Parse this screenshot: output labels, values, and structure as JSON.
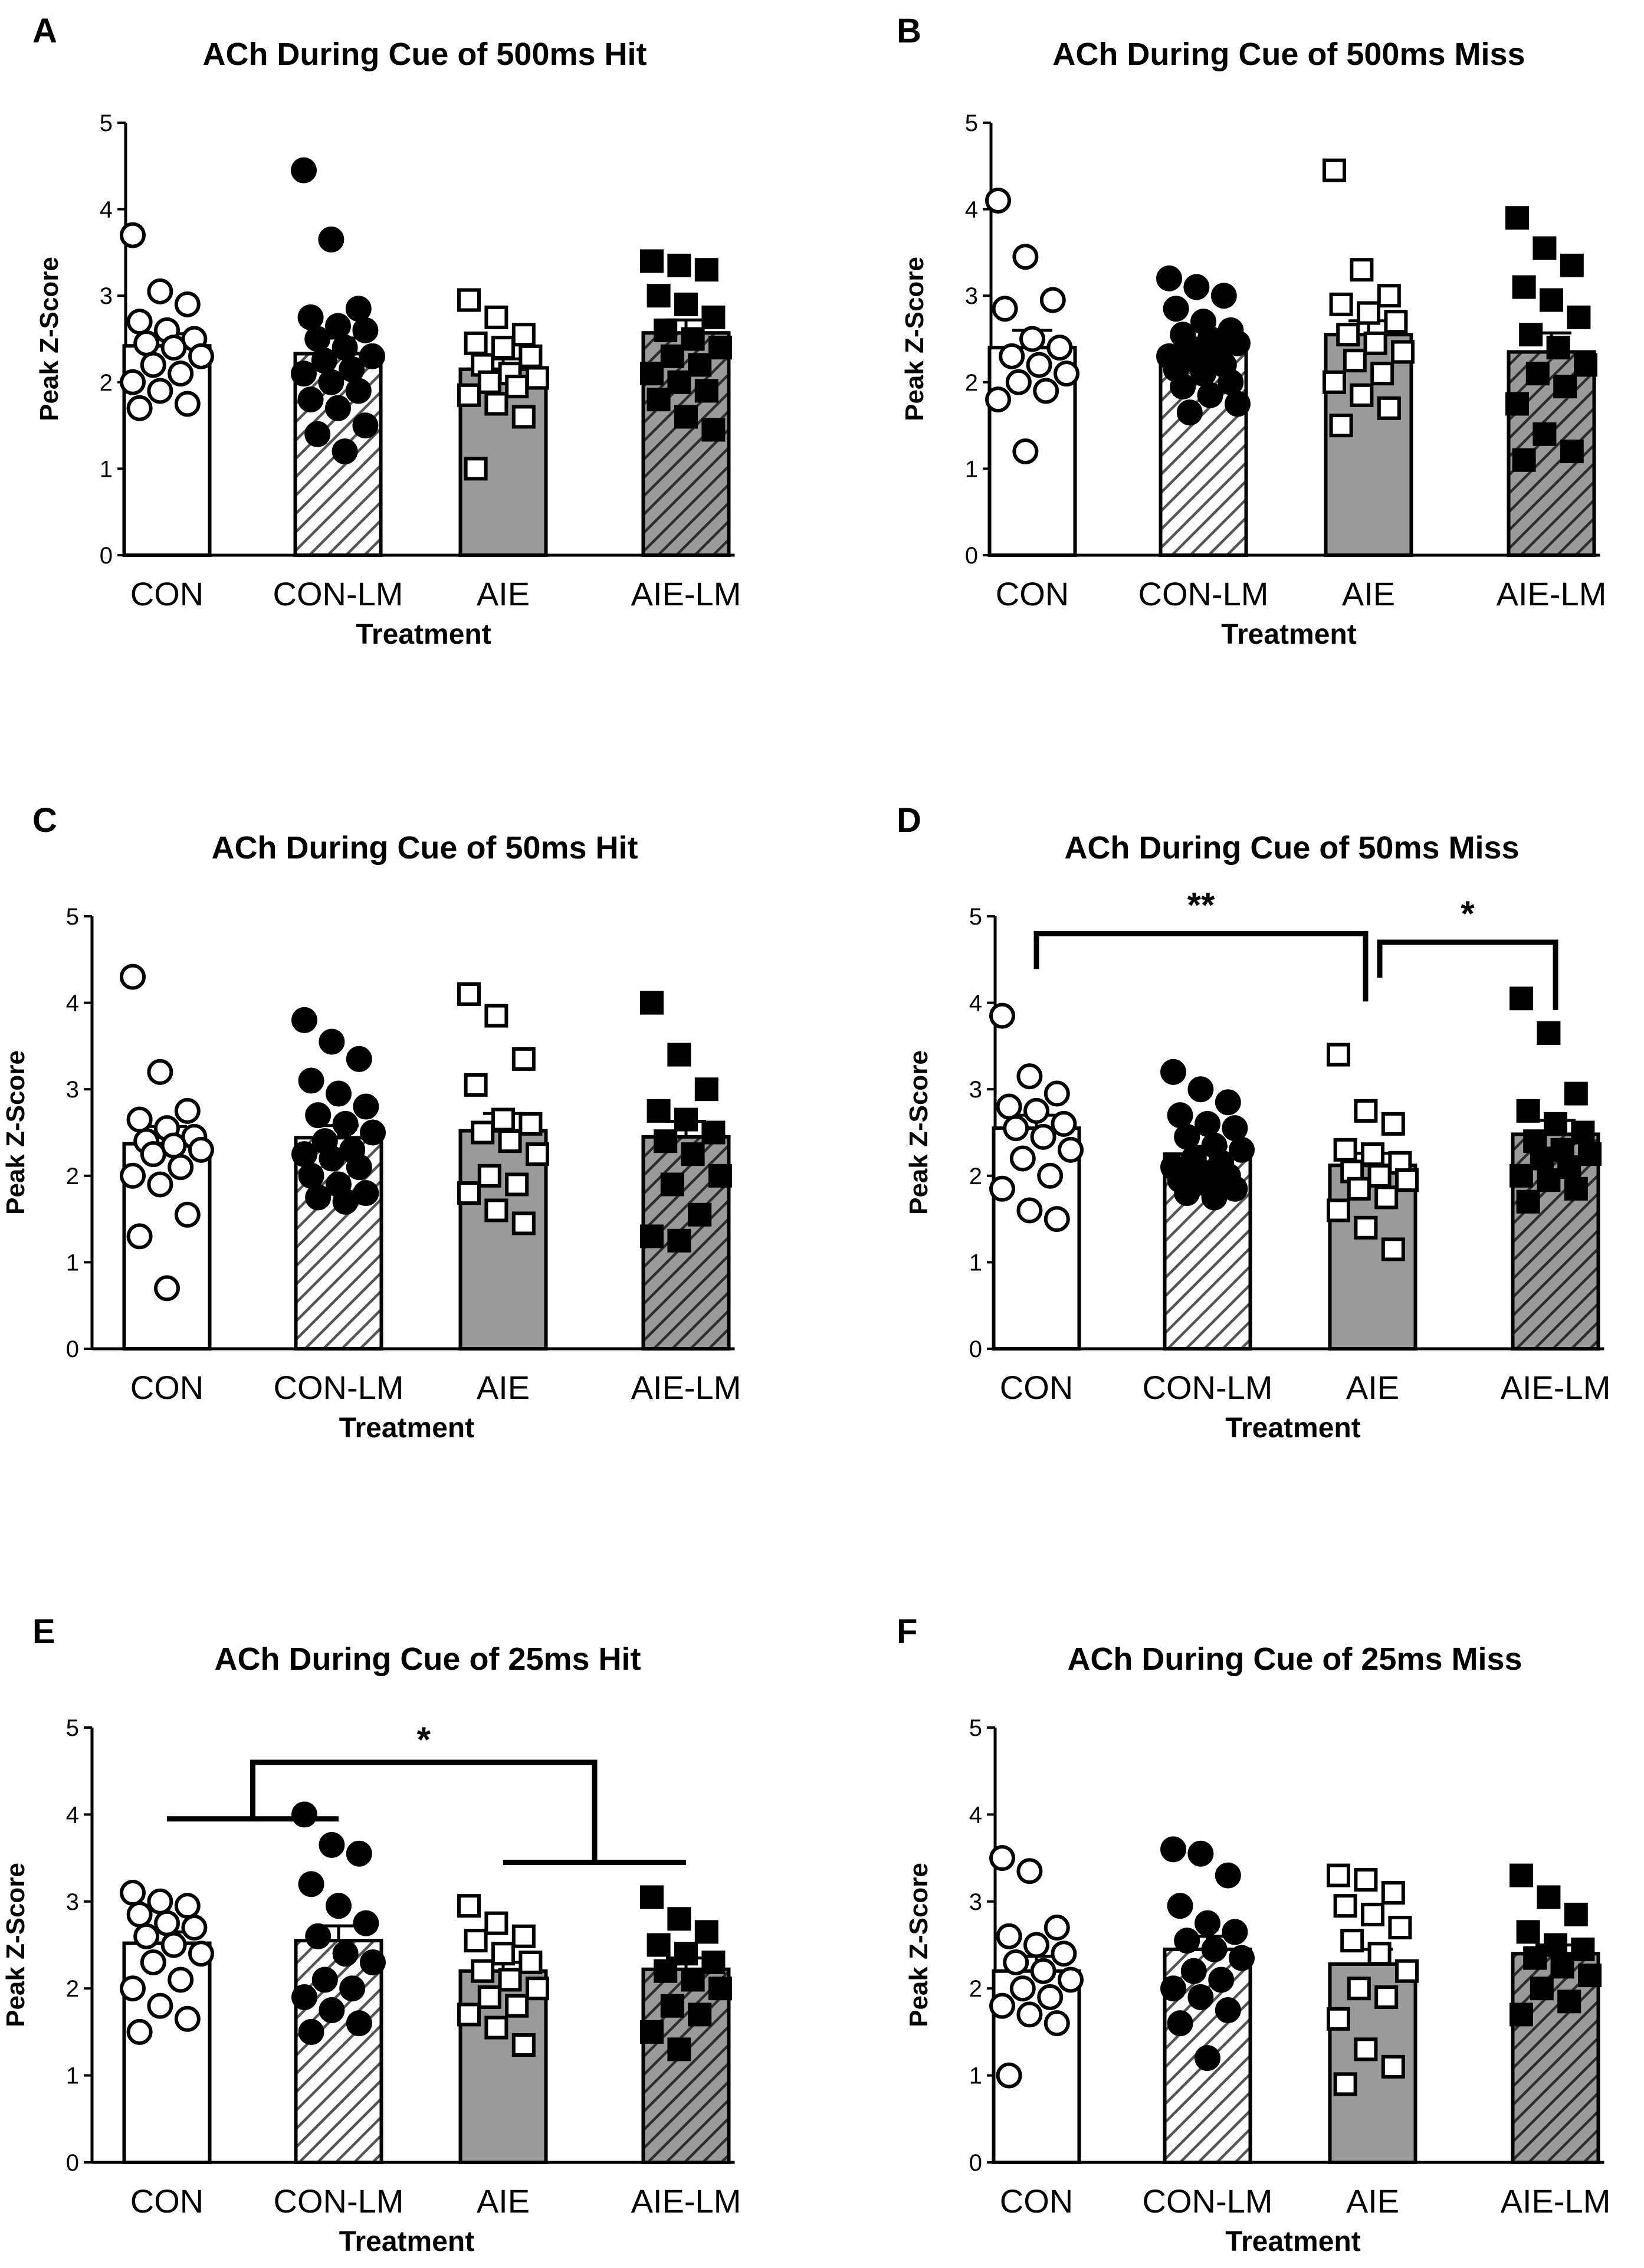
{
  "figure": {
    "y_axis_label": "Peak Z-Score",
    "x_axis_label": "Treatment"
  },
  "chart_data": [
    {
      "panel": "A",
      "type": "bar",
      "title": "ACh During Cue of 500ms Hit",
      "xlabel": "Treatment",
      "ylabel": "Peak Z-Score",
      "ylim": [
        0,
        5
      ],
      "yticks": [
        "0",
        "1",
        "2",
        "3",
        "4",
        "5"
      ],
      "categories": [
        "CON",
        "CON-LM",
        "AIE",
        "AIE-LM"
      ],
      "values": [
        2.42,
        2.33,
        2.15,
        2.57
      ],
      "errors": [
        0.14,
        0.18,
        0.12,
        0.15
      ],
      "points": [
        [
          3.7,
          3.05,
          2.9,
          2.7,
          2.6,
          2.5,
          2.45,
          2.4,
          2.3,
          2.2,
          2.1,
          2.0,
          1.9,
          1.75,
          1.7
        ],
        [
          4.45,
          3.65,
          2.85,
          2.75,
          2.65,
          2.6,
          2.5,
          2.4,
          2.3,
          2.25,
          2.15,
          2.1,
          2.0,
          1.9,
          1.8,
          1.7,
          1.5,
          1.4,
          1.2
        ],
        [
          2.95,
          2.75,
          2.55,
          2.45,
          2.4,
          2.3,
          2.2,
          2.1,
          2.05,
          2.0,
          1.95,
          1.85,
          1.75,
          1.6,
          1.0
        ],
        [
          3.4,
          3.35,
          3.3,
          3.0,
          2.9,
          2.75,
          2.6,
          2.5,
          2.4,
          2.3,
          2.2,
          2.1,
          2.0,
          1.9,
          1.8,
          1.6,
          1.45
        ]
      ],
      "significance": []
    },
    {
      "panel": "B",
      "type": "bar",
      "title": "ACh During Cue of 500ms Miss",
      "xlabel": "Treatment",
      "ylabel": "Peak Z-Score",
      "ylim": [
        0,
        5
      ],
      "yticks": [
        "0",
        "1",
        "2",
        "3",
        "4",
        "5"
      ],
      "categories": [
        "CON",
        "CON-LM",
        "AIE",
        "AIE-LM"
      ],
      "values": [
        2.4,
        2.38,
        2.55,
        2.35
      ],
      "errors": [
        0.2,
        0.09,
        0.16,
        0.22
      ],
      "points": [
        [
          4.1,
          3.45,
          2.95,
          2.85,
          2.5,
          2.4,
          2.3,
          2.2,
          2.1,
          2.0,
          1.9,
          1.8,
          1.2
        ],
        [
          3.2,
          3.1,
          3.0,
          2.85,
          2.7,
          2.6,
          2.55,
          2.5,
          2.45,
          2.4,
          2.35,
          2.3,
          2.25,
          2.2,
          2.15,
          2.1,
          2.0,
          1.95,
          1.85,
          1.75,
          1.65
        ],
        [
          4.45,
          3.3,
          3.0,
          2.9,
          2.8,
          2.7,
          2.55,
          2.45,
          2.35,
          2.25,
          2.1,
          2.0,
          1.85,
          1.7,
          1.5
        ],
        [
          3.9,
          3.55,
          3.35,
          3.1,
          2.95,
          2.75,
          2.55,
          2.4,
          2.2,
          2.1,
          1.95,
          1.75,
          1.4,
          1.2,
          1.1
        ]
      ],
      "significance": []
    },
    {
      "panel": "C",
      "type": "bar",
      "title": "ACh During Cue of 50ms Hit",
      "xlabel": "Treatment",
      "ylabel": "Peak Z-Score",
      "ylim": [
        0,
        5
      ],
      "yticks": [
        "0",
        "1",
        "2",
        "3",
        "4",
        "5"
      ],
      "categories": [
        "CON",
        "CON-LM",
        "AIE",
        "AIE-LM"
      ],
      "values": [
        2.37,
        2.44,
        2.52,
        2.45
      ],
      "errors": [
        0.2,
        0.14,
        0.2,
        0.18
      ],
      "points": [
        [
          4.3,
          3.2,
          2.75,
          2.65,
          2.55,
          2.45,
          2.4,
          2.35,
          2.3,
          2.25,
          2.1,
          2.0,
          1.9,
          1.55,
          1.3,
          0.7
        ],
        [
          3.8,
          3.55,
          3.35,
          3.1,
          2.95,
          2.8,
          2.7,
          2.6,
          2.5,
          2.4,
          2.3,
          2.25,
          2.2,
          2.1,
          2.0,
          1.9,
          1.8,
          1.75,
          1.7
        ],
        [
          4.1,
          3.85,
          3.35,
          3.05,
          2.65,
          2.6,
          2.5,
          2.4,
          2.25,
          2.0,
          1.9,
          1.8,
          1.6,
          1.45
        ],
        [
          4.0,
          3.4,
          3.0,
          2.75,
          2.65,
          2.5,
          2.4,
          2.25,
          2.0,
          1.9,
          1.55,
          1.3,
          1.25
        ]
      ],
      "significance": []
    },
    {
      "panel": "D",
      "type": "bar",
      "title": "ACh During Cue of 50ms Miss",
      "xlabel": "Treatment",
      "ylabel": "Peak Z-Score",
      "ylim": [
        0,
        5
      ],
      "yticks": [
        "0",
        "1",
        "2",
        "3",
        "4",
        "5"
      ],
      "categories": [
        "CON",
        "CON-LM",
        "AIE",
        "AIE-LM"
      ],
      "values": [
        2.55,
        2.25,
        2.12,
        2.48
      ],
      "errors": [
        0.15,
        0.09,
        0.14,
        0.16
      ],
      "points": [
        [
          3.85,
          3.15,
          2.95,
          2.8,
          2.75,
          2.6,
          2.55,
          2.45,
          2.3,
          2.2,
          2.0,
          1.85,
          1.6,
          1.5
        ],
        [
          3.2,
          3.0,
          2.85,
          2.7,
          2.6,
          2.55,
          2.45,
          2.35,
          2.3,
          2.2,
          2.15,
          2.1,
          2.05,
          2.0,
          1.95,
          1.9,
          1.85,
          1.8,
          1.75
        ],
        [
          3.4,
          2.75,
          2.6,
          2.3,
          2.25,
          2.15,
          2.05,
          2.0,
          1.95,
          1.85,
          1.75,
          1.6,
          1.4,
          1.15
        ],
        [
          4.05,
          3.65,
          2.95,
          2.75,
          2.6,
          2.5,
          2.4,
          2.3,
          2.25,
          2.2,
          2.1,
          2.0,
          1.95,
          1.85,
          1.7
        ]
      ],
      "significance": [
        {
          "from": 0,
          "to": 2,
          "level": 4.8,
          "label": "**"
        },
        {
          "from": 2,
          "to": 3,
          "level": 4.7,
          "label": "*"
        }
      ]
    },
    {
      "panel": "E",
      "type": "bar",
      "title": "ACh During Cue of 25ms Hit",
      "xlabel": "Treatment",
      "ylabel": "Peak Z-Score",
      "ylim": [
        0,
        5
      ],
      "yticks": [
        "0",
        "1",
        "2",
        "3",
        "4",
        "5"
      ],
      "categories": [
        "CON",
        "CON-LM",
        "AIE",
        "AIE-LM"
      ],
      "values": [
        2.52,
        2.55,
        2.2,
        2.22
      ],
      "errors": [
        0.13,
        0.17,
        0.1,
        0.13
      ],
      "points": [
        [
          3.1,
          3.0,
          2.95,
          2.85,
          2.75,
          2.7,
          2.6,
          2.5,
          2.4,
          2.3,
          2.1,
          2.0,
          1.8,
          1.65,
          1.5
        ],
        [
          4.0,
          3.65,
          3.55,
          3.2,
          2.95,
          2.75,
          2.6,
          2.4,
          2.3,
          2.1,
          2.0,
          1.9,
          1.75,
          1.6,
          1.5
        ],
        [
          2.95,
          2.75,
          2.6,
          2.55,
          2.4,
          2.3,
          2.2,
          2.1,
          2.0,
          1.9,
          1.8,
          1.7,
          1.55,
          1.35
        ],
        [
          3.05,
          2.8,
          2.65,
          2.5,
          2.4,
          2.3,
          2.2,
          2.1,
          2.0,
          1.8,
          1.7,
          1.5,
          1.3
        ]
      ],
      "significance": [
        {
          "from": 0,
          "to": 1,
          "to_group": [
            2,
            3
          ],
          "label": "*",
          "level": 4.6,
          "group_level_a": 3.95,
          "group_level_b": 3.45
        }
      ]
    },
    {
      "panel": "F",
      "type": "bar",
      "title": "ACh During Cue of 25ms Miss",
      "xlabel": "Treatment",
      "ylabel": "Peak Z-Score",
      "ylim": [
        0,
        5
      ],
      "yticks": [
        "0",
        "1",
        "2",
        "3",
        "4",
        "5"
      ],
      "categories": [
        "CON",
        "CON-LM",
        "AIE",
        "AIE-LM"
      ],
      "values": [
        2.2,
        2.45,
        2.28,
        2.4
      ],
      "errors": [
        0.17,
        0.15,
        0.17,
        0.1
      ],
      "points": [
        [
          3.5,
          3.35,
          2.7,
          2.6,
          2.5,
          2.4,
          2.3,
          2.2,
          2.1,
          2.0,
          1.9,
          1.8,
          1.7,
          1.6,
          1.0
        ],
        [
          3.6,
          3.55,
          3.3,
          2.95,
          2.75,
          2.65,
          2.55,
          2.45,
          2.35,
          2.2,
          2.1,
          2.0,
          1.9,
          1.75,
          1.6,
          1.2
        ],
        [
          3.3,
          3.25,
          3.1,
          2.95,
          2.85,
          2.7,
          2.55,
          2.4,
          2.2,
          2.0,
          1.9,
          1.65,
          1.3,
          1.1,
          0.9
        ],
        [
          3.3,
          3.05,
          2.85,
          2.65,
          2.5,
          2.45,
          2.35,
          2.25,
          2.15,
          2.0,
          1.85,
          1.7
        ]
      ],
      "significance": []
    }
  ]
}
